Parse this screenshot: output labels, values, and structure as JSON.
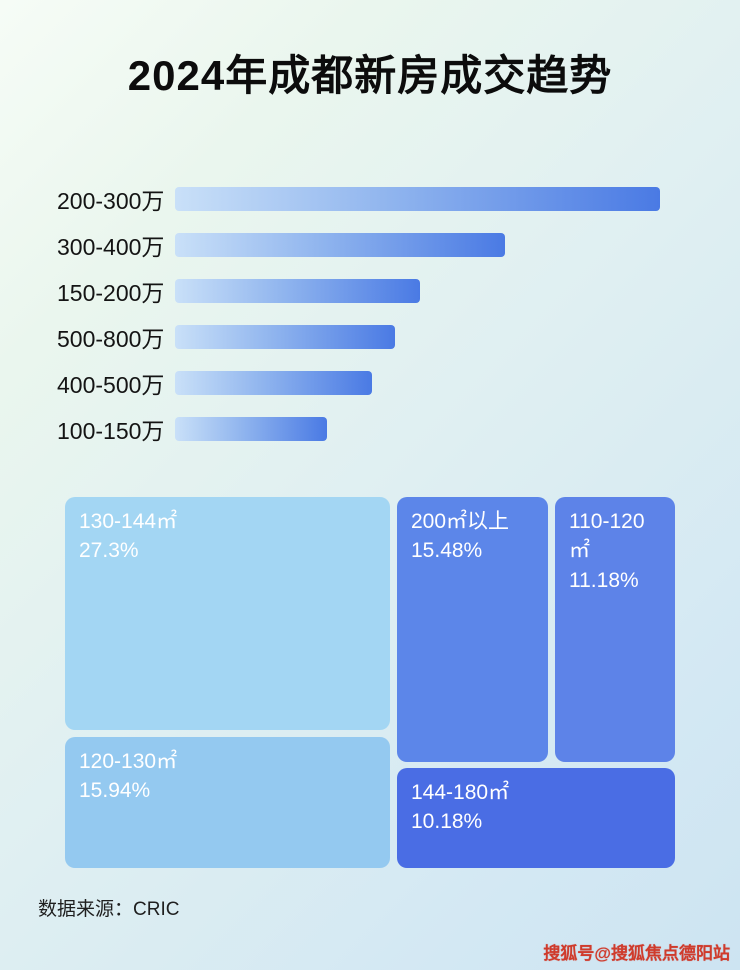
{
  "title": "2024年成都新房成交趋势",
  "footer": {
    "source_label": "数据来源：CRIC"
  },
  "watermark": "搜狐号@搜狐焦点德阳站",
  "chart_data": [
    {
      "type": "bar",
      "orientation": "horizontal",
      "title": "2024年成都新房成交趋势",
      "categories": [
        "200-300万",
        "300-400万",
        "150-200万",
        "500-800万",
        "400-500万",
        "100-150万"
      ],
      "values": [
        100,
        68,
        50.5,
        45.4,
        40.6,
        31.3
      ],
      "values_note": "no numeric labels shown; values are bar lengths relative to longest bar = 100",
      "bar_gradient": [
        "#c9e0f8",
        "#4a7ae4"
      ],
      "grid": false,
      "legend": false
    },
    {
      "type": "treemap",
      "blocks": [
        {
          "label": "130-144㎡",
          "pct": "27.3%",
          "value": 27.3,
          "color": "#a3d6f3"
        },
        {
          "label": "200㎡以上",
          "pct": "15.48%",
          "value": 15.48,
          "color": "#5c86e9"
        },
        {
          "label": "110-120㎡",
          "pct": "11.18%",
          "value": 11.18,
          "color": "#5d83e8"
        },
        {
          "label": "120-130㎡",
          "pct": "15.94%",
          "value": 15.94,
          "color": "#94c9f0"
        },
        {
          "label": "144-180㎡",
          "pct": "10.18%",
          "value": 10.18,
          "color": "#4a6de4"
        }
      ]
    }
  ]
}
